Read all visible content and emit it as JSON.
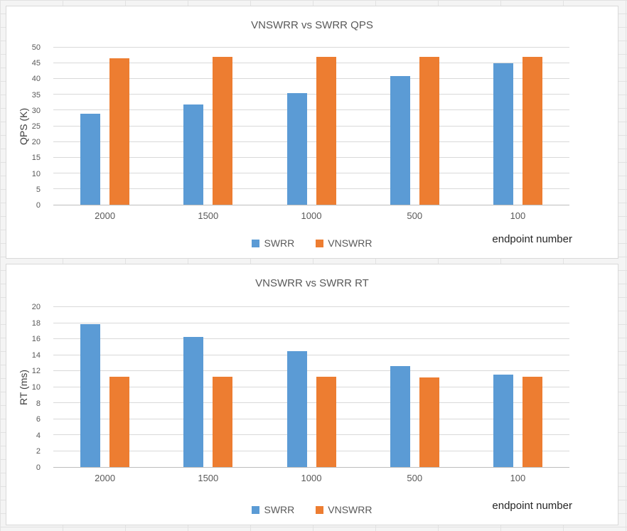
{
  "colors": {
    "swrr": "#5B9BD5",
    "vnswrr": "#ED7D31",
    "gridline": "#D9D9D9",
    "axis_text": "#595959",
    "title_text": "#595959"
  },
  "chart_data": [
    {
      "type": "bar",
      "title": "VNSWRR vs SWRR QPS",
      "xlabel": "endpoint number",
      "ylabel": "QPS (K)",
      "categories": [
        "2000",
        "1500",
        "1000",
        "500",
        "100"
      ],
      "series": [
        {
          "name": "SWRR",
          "color": "#5B9BD5",
          "values": [
            29,
            32,
            35.5,
            41,
            45
          ]
        },
        {
          "name": "VNSWRR",
          "color": "#ED7D31",
          "values": [
            46.7,
            47,
            47,
            47,
            47
          ]
        }
      ],
      "ylim": [
        0,
        50
      ],
      "ytick_step": 5,
      "grid": true,
      "legend_position": "bottom"
    },
    {
      "type": "bar",
      "title": "VNSWRR vs SWRR RT",
      "xlabel": "endpoint number",
      "ylabel": "RT (ms)",
      "categories": [
        "2000",
        "1500",
        "1000",
        "500",
        "100"
      ],
      "series": [
        {
          "name": "SWRR",
          "color": "#5B9BD5",
          "values": [
            17.9,
            16.3,
            14.5,
            12.6,
            11.6
          ]
        },
        {
          "name": "VNSWRR",
          "color": "#ED7D31",
          "values": [
            11.3,
            11.3,
            11.3,
            11.2,
            11.3
          ]
        }
      ],
      "ylim": [
        0,
        20
      ],
      "ytick_step": 2,
      "grid": true,
      "legend_position": "bottom"
    }
  ]
}
